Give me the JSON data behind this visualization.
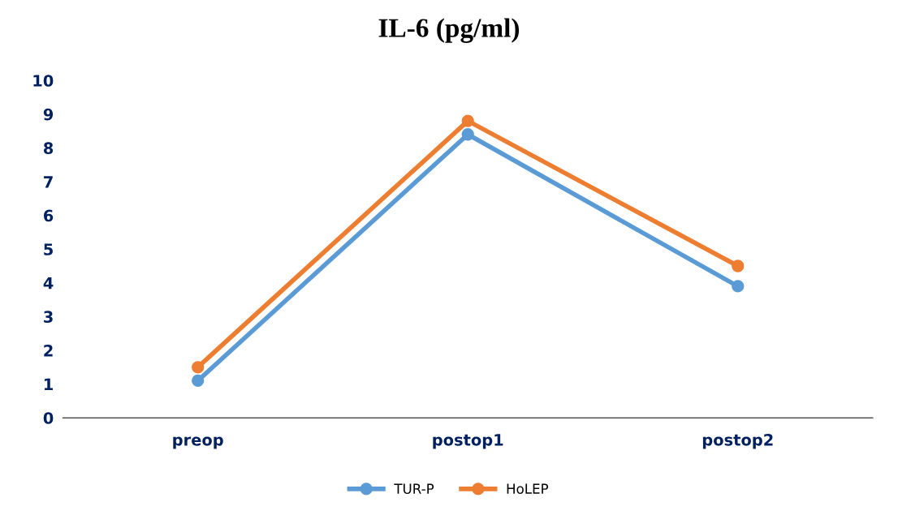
{
  "chart_data": {
    "type": "line",
    "title": "IL-6 (pg/ml)",
    "categories": [
      "preop",
      "postop1",
      "postop2"
    ],
    "series": [
      {
        "name": "TUR-P",
        "color": "#5b9bd5",
        "values": [
          1.1,
          8.4,
          3.9
        ]
      },
      {
        "name": "HoLEP",
        "color": "#ed7d31",
        "values": [
          1.5,
          8.8,
          4.5
        ]
      }
    ],
    "ylim": [
      0,
      10
    ],
    "yticks": [
      0,
      1,
      2,
      3,
      4,
      5,
      6,
      7,
      8,
      9,
      10
    ],
    "grid": false,
    "legend": "bottom",
    "marker": "circle",
    "line_style": "solid"
  }
}
